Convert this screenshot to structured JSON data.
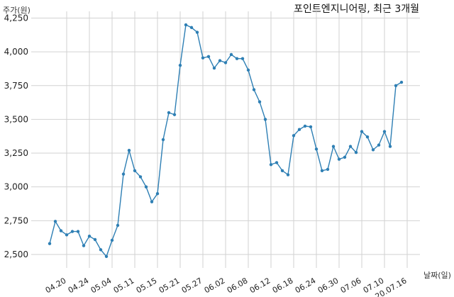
{
  "chart_data": {
    "type": "line",
    "title": "포인트엔지니어링, 최근 3개월",
    "ylabel": "주가(원)",
    "xlabel": "날짜(일)",
    "ylim": [
      2400,
      4300
    ],
    "yticks": [
      2500,
      2750,
      3000,
      3250,
      3500,
      3750,
      4000,
      4250
    ],
    "ytick_labels": [
      "2,500",
      "2,750",
      "3,000",
      "3,250",
      "3,500",
      "3,750",
      "4,000",
      "4,250"
    ],
    "xtick_labels": [
      "04.20",
      "04.24",
      "05.04",
      "05.11",
      "05.15",
      "05.21",
      "05.27",
      "06.02",
      "06.08",
      "06.12",
      "06.18",
      "06.24",
      "06.30",
      "07.06",
      "07.10",
      "20.07.16"
    ],
    "xtick_index": [
      3,
      7,
      11,
      15,
      19,
      23,
      27,
      31,
      35,
      39,
      43,
      47,
      51,
      55,
      59,
      63
    ],
    "grid": true,
    "line_color": "#2e7fb4",
    "values": [
      2580,
      2745,
      2675,
      2645,
      2670,
      2670,
      2565,
      2635,
      2610,
      2535,
      2485,
      2605,
      2715,
      3095,
      3270,
      3120,
      3075,
      3000,
      2890,
      2950,
      3350,
      3550,
      3535,
      3900,
      4200,
      4180,
      4145,
      3955,
      3965,
      3880,
      3935,
      3920,
      3980,
      3950,
      3950,
      3865,
      3720,
      3630,
      3500,
      3165,
      3180,
      3120,
      3090,
      3380,
      3425,
      3450,
      3445,
      3280,
      3120,
      3130,
      3300,
      3205,
      3220,
      3300,
      3255,
      3410,
      3370,
      3275,
      3310,
      3410,
      3300,
      3750,
      3775
    ]
  }
}
